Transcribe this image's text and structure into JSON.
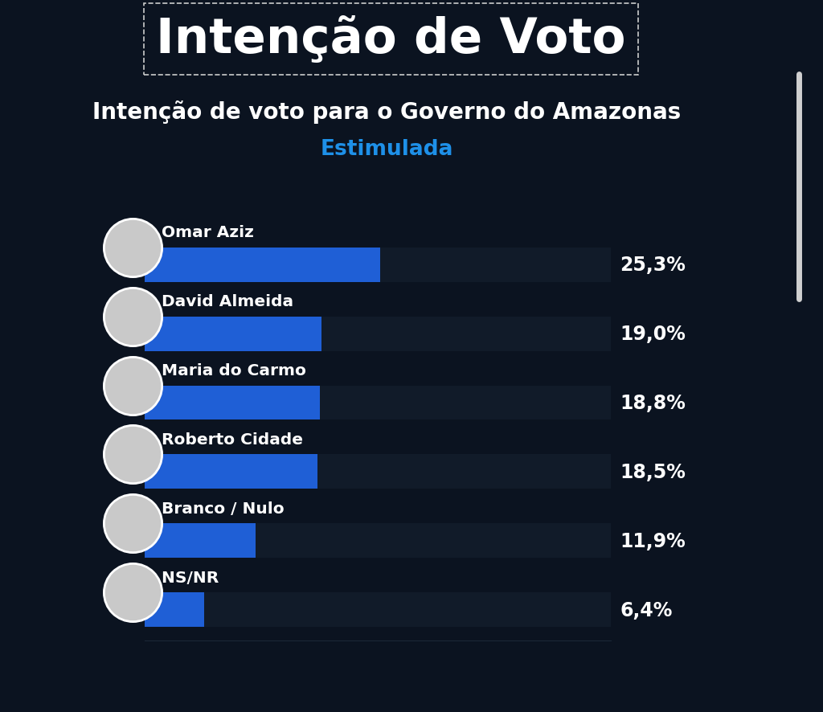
{
  "header": {
    "title": "Intenção de Voto"
  },
  "chart_data": {
    "type": "bar",
    "orientation": "horizontal",
    "title": "Intenção de voto para o Governo do Amazonas",
    "subtitle": "Estimulada",
    "categories": [
      "Omar Aziz",
      "David Almeida",
      "Maria do Carmo",
      "Roberto Cidade",
      "Branco / Nulo",
      "NS/NR"
    ],
    "values": [
      25.3,
      19.0,
      18.8,
      18.5,
      11.9,
      6.4
    ],
    "value_labels": [
      "25,3%",
      "19,0%",
      "18,8%",
      "18,5%",
      "11,9%",
      "6,4%"
    ],
    "data_labels": true,
    "tick_labels": false,
    "grid": false,
    "color": "#1f5fd6",
    "xlim": [
      0,
      50
    ]
  }
}
